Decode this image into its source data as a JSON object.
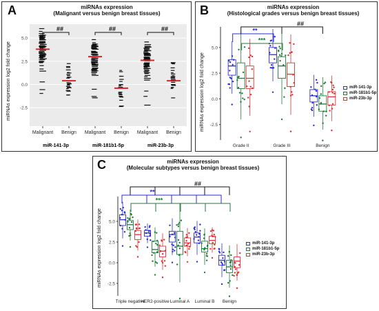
{
  "panels": [
    {
      "id": "A",
      "title_line1": "miRNAs expression",
      "title_line2": "(Malignant versus benign breast tissues)",
      "ylabel": "miRNAs expression log2 fold change",
      "sig_labels": [
        "##",
        "##",
        "##"
      ]
    },
    {
      "id": "B",
      "title_line1": "miRNAs expression",
      "title_line2": "(Histological grades versus benign breast tissues)",
      "ylabel": "miRNAs expression log2 fold change",
      "sig_labels": [
        "**",
        "***",
        "##"
      ]
    },
    {
      "id": "C",
      "title_line1": "miRNAs expression",
      "title_line2": "(Molecular subtypes versus benign breast tissues)",
      "ylabel": "miRNAs expression log2 fold change",
      "sig_labels": [
        "**",
        "***",
        "##"
      ]
    }
  ],
  "legend": [
    {
      "name": "miR-141-3p",
      "color": "#2b2bd9"
    },
    {
      "name": "miR-181b1-5p",
      "color": "#1f7a3a"
    },
    {
      "name": "miR-23b-3p",
      "color": "#e03030"
    }
  ],
  "chart_data": [
    {
      "type": "scatter",
      "panel": "A",
      "yticks": [
        "5.0",
        "2.5",
        "0.0",
        "-2.5"
      ],
      "ylim": [
        -4.5,
        6.5
      ],
      "categories": [
        "Malignant",
        "Benign",
        "Malignant",
        "Benign",
        "Malignant",
        "Benign"
      ],
      "groups": [
        "miR-141-3p",
        "miR-181b1-5p",
        "miR-23b-3p"
      ],
      "medians": [
        3.8,
        0.4,
        3.0,
        -0.4,
        2.6,
        0.4
      ]
    },
    {
      "type": "box",
      "panel": "B",
      "yticks": [
        "5.0",
        "2.5",
        "0.0",
        "-2.5"
      ],
      "ylim": [
        -4,
        7
      ],
      "categories": [
        "Grade II",
        "Grade III",
        "Benign"
      ],
      "series": [
        {
          "name": "miR-141-3p",
          "q1": [
            2.3,
            3.5,
            -0.3
          ],
          "median": [
            3.2,
            4.3,
            0.3
          ],
          "q3": [
            3.8,
            5.0,
            0.9
          ]
        },
        {
          "name": "miR-181b1-5p",
          "q1": [
            1.0,
            2.0,
            -1.2
          ],
          "median": [
            2.0,
            3.2,
            -0.5
          ],
          "q3": [
            3.5,
            4.1,
            0.3
          ]
        },
        {
          "name": "miR-23b-3p",
          "q1": [
            1.0,
            1.2,
            -0.6
          ],
          "median": [
            2.0,
            2.4,
            0.2
          ],
          "q3": [
            3.2,
            3.5,
            0.7
          ]
        }
      ]
    },
    {
      "type": "box",
      "panel": "C",
      "yticks": [
        "5.0",
        "2.5",
        "0.0",
        "-2.5"
      ],
      "ylim": [
        -4,
        8
      ],
      "categories": [
        "Triple negative",
        "HER2-positive",
        "Luminal A",
        "Luminal B",
        "Benign"
      ],
      "series": [
        {
          "name": "miR-141-3p",
          "q1": [
            4.5,
            3.2,
            2.5,
            2.4,
            -0.3
          ],
          "median": [
            5.2,
            3.6,
            3.4,
            3.1,
            0.3
          ],
          "q3": [
            5.8,
            3.9,
            3.8,
            3.6,
            0.9
          ]
        },
        {
          "name": "miR-181b1-5p",
          "q1": [
            4.0,
            1.2,
            1.0,
            1.3,
            -1.2
          ],
          "median": [
            4.6,
            1.6,
            2.0,
            1.7,
            -0.5
          ],
          "q3": [
            5.1,
            2.6,
            3.8,
            2.6,
            0.3
          ]
        },
        {
          "name": "miR-23b-3p",
          "q1": [
            2.8,
            0.7,
            2.0,
            2.3,
            -0.6
          ],
          "median": [
            3.4,
            1.4,
            2.4,
            2.7,
            0.2
          ],
          "q3": [
            3.9,
            2.0,
            3.0,
            3.2,
            0.7
          ]
        }
      ]
    }
  ],
  "panel_a_groups": [
    "miR-141-3p",
    "miR-181b1-5p",
    "miR-23b-3p"
  ]
}
